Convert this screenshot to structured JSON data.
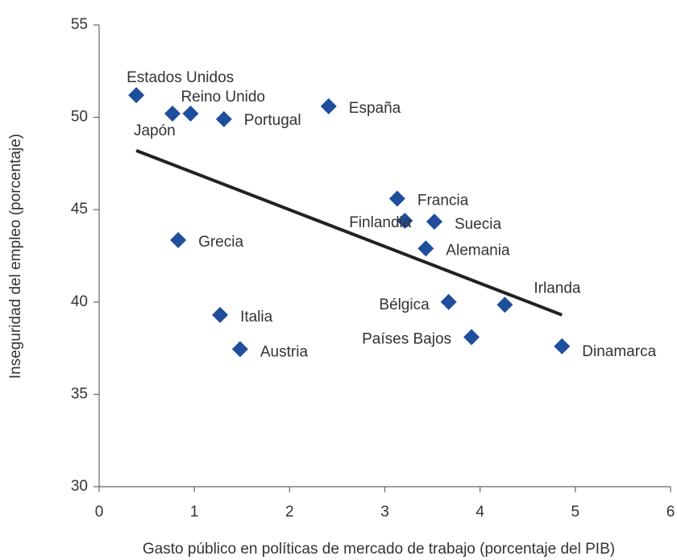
{
  "chart_data": {
    "type": "scatter",
    "x_label": "Gasto público en políticas de mercado de trabajo (porcentaje del PIB)",
    "y_label": "Inseguridad del empleo (porcentaje)",
    "labels": [
      "Estados Unidos",
      "Japón",
      "Reino Unido",
      "Portugal",
      "España",
      "Francia",
      "Finlandia",
      "Suecia",
      "Alemania",
      "Grecia",
      "Bélgica",
      "Irlanda",
      "Italia",
      "Austria",
      "Países Bajos",
      "Dinamarca"
    ],
    "x": [
      0.39,
      0.77,
      0.96,
      1.31,
      2.41,
      3.13,
      3.21,
      3.52,
      3.43,
      0.83,
      3.67,
      4.26,
      1.27,
      1.48,
      3.91,
      4.86
    ],
    "y": [
      51.2,
      50.2,
      50.2,
      49.9,
      50.6,
      45.6,
      44.4,
      44.35,
      42.9,
      43.35,
      40.0,
      39.85,
      39.3,
      37.45,
      38.1,
      37.6
    ],
    "color": "#1f4e9c",
    "trendline": {
      "x": [
        0.39,
        4.86
      ],
      "y": [
        48.2,
        39.3
      ],
      "color": "#222222"
    },
    "xlim": [
      0,
      6
    ],
    "ylim": [
      30,
      55
    ],
    "xticks": [
      0,
      1,
      2,
      3,
      4,
      5,
      6
    ],
    "yticks": [
      30,
      35,
      40,
      45,
      50,
      55
    ]
  }
}
